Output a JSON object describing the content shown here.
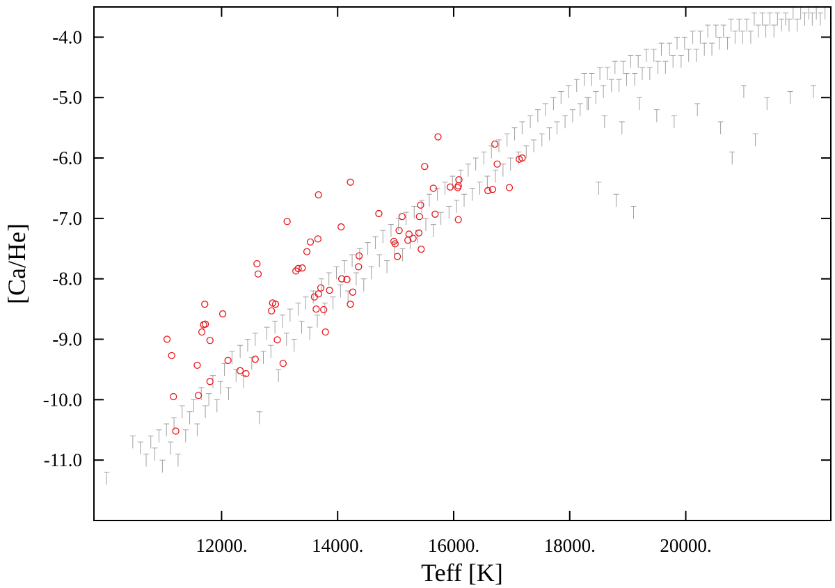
{
  "chart_data": {
    "type": "scatter",
    "title": "",
    "xlabel": "Teff [K]",
    "ylabel": "[Ca/He]",
    "xlim": [
      9800,
      22500
    ],
    "ylim": [
      -12.0,
      -3.5
    ],
    "grid": false,
    "legend": "none",
    "xticks": [
      {
        "value": 12000,
        "label": "12000."
      },
      {
        "value": 14000,
        "label": "14000."
      },
      {
        "value": 16000,
        "label": "16000."
      },
      {
        "value": 18000,
        "label": "18000."
      },
      {
        "value": 20000,
        "label": "20000."
      }
    ],
    "yticks": [
      {
        "value": -4.0,
        "label": "-4.0"
      },
      {
        "value": -5.0,
        "label": "-5.0"
      },
      {
        "value": -6.0,
        "label": "-6.0"
      },
      {
        "value": -7.0,
        "label": "-7.0"
      },
      {
        "value": -8.0,
        "label": "-8.0"
      },
      {
        "value": -9.0,
        "label": "-9.0"
      },
      {
        "value": -10.0,
        "label": "-10.0"
      },
      {
        "value": -11.0,
        "label": "-11.0"
      }
    ],
    "series": [
      {
        "marker": "upper-limit",
        "color": "#a0a0a0",
        "points": [
          [
            10020,
            -11.2
          ],
          [
            10470,
            -10.6
          ],
          [
            10600,
            -10.7
          ],
          [
            10700,
            -10.9
          ],
          [
            10780,
            -10.6
          ],
          [
            10850,
            -10.8
          ],
          [
            10920,
            -10.5
          ],
          [
            10980,
            -11.0
          ],
          [
            11050,
            -10.4
          ],
          [
            11120,
            -10.7
          ],
          [
            11180,
            -10.3
          ],
          [
            11250,
            -10.9
          ],
          [
            11320,
            -10.1
          ],
          [
            11380,
            -10.5
          ],
          [
            11450,
            -10.2
          ],
          [
            11520,
            -10.0
          ],
          [
            11580,
            -10.4
          ],
          [
            11650,
            -9.8
          ],
          [
            11720,
            -10.1
          ],
          [
            11780,
            -9.9
          ],
          [
            11850,
            -9.6
          ],
          [
            11920,
            -10.0
          ],
          [
            11980,
            -9.7
          ],
          [
            12050,
            -9.4
          ],
          [
            12120,
            -9.8
          ],
          [
            12180,
            -9.2
          ],
          [
            12250,
            -9.5
          ],
          [
            12320,
            -9.1
          ],
          [
            12380,
            -9.6
          ],
          [
            12450,
            -9.0
          ],
          [
            12520,
            -9.3
          ],
          [
            12580,
            -8.9
          ],
          [
            12650,
            -10.2
          ],
          [
            12720,
            -9.2
          ],
          [
            12780,
            -8.8
          ],
          [
            12850,
            -9.1
          ],
          [
            12920,
            -8.7
          ],
          [
            12980,
            -9.5
          ],
          [
            13050,
            -8.6
          ],
          [
            13120,
            -8.9
          ],
          [
            13180,
            -8.5
          ],
          [
            13250,
            -9.0
          ],
          [
            13320,
            -8.4
          ],
          [
            13380,
            -8.7
          ],
          [
            13450,
            -8.3
          ],
          [
            13520,
            -8.8
          ],
          [
            13580,
            -8.2
          ],
          [
            13650,
            -8.6
          ],
          [
            13720,
            -8.0
          ],
          [
            13780,
            -8.4
          ],
          [
            13850,
            -7.9
          ],
          [
            13920,
            -8.3
          ],
          [
            13980,
            -7.8
          ],
          [
            14050,
            -8.1
          ],
          [
            14120,
            -7.7
          ],
          [
            14180,
            -8.2
          ],
          [
            14250,
            -7.6
          ],
          [
            14320,
            -7.9
          ],
          [
            14380,
            -7.5
          ],
          [
            14450,
            -8.0
          ],
          [
            14520,
            -7.4
          ],
          [
            14580,
            -7.8
          ],
          [
            14650,
            -7.3
          ],
          [
            14720,
            -7.6
          ],
          [
            14780,
            -7.2
          ],
          [
            14850,
            -7.7
          ],
          [
            14920,
            -7.1
          ],
          [
            14980,
            -7.4
          ],
          [
            15050,
            -7.0
          ],
          [
            15120,
            -7.5
          ],
          [
            15180,
            -6.9
          ],
          [
            15250,
            -7.3
          ],
          [
            15320,
            -6.8
          ],
          [
            15380,
            -7.2
          ],
          [
            15450,
            -6.7
          ],
          [
            15520,
            -7.0
          ],
          [
            15580,
            -6.6
          ],
          [
            15650,
            -7.1
          ],
          [
            15720,
            -6.5
          ],
          [
            15780,
            -6.9
          ],
          [
            15850,
            -6.4
          ],
          [
            15920,
            -6.8
          ],
          [
            15980,
            -6.3
          ],
          [
            16050,
            -6.7
          ],
          [
            16120,
            -6.2
          ],
          [
            16180,
            -6.6
          ],
          [
            16250,
            -6.1
          ],
          [
            16320,
            -6.5
          ],
          [
            16380,
            -6.0
          ],
          [
            16450,
            -6.4
          ],
          [
            16520,
            -5.9
          ],
          [
            16580,
            -6.3
          ],
          [
            16650,
            -5.8
          ],
          [
            16720,
            -6.2
          ],
          [
            16780,
            -5.7
          ],
          [
            16850,
            -6.1
          ],
          [
            16920,
            -5.6
          ],
          [
            16980,
            -6.0
          ],
          [
            17050,
            -5.5
          ],
          [
            17120,
            -5.9
          ],
          [
            17180,
            -5.4
          ],
          [
            17250,
            -5.8
          ],
          [
            17320,
            -5.3
          ],
          [
            17380,
            -5.7
          ],
          [
            17450,
            -5.2
          ],
          [
            17520,
            -5.6
          ],
          [
            17580,
            -5.1
          ],
          [
            17650,
            -5.5
          ],
          [
            17720,
            -5.0
          ],
          [
            17780,
            -5.4
          ],
          [
            17850,
            -4.9
          ],
          [
            17920,
            -5.3
          ],
          [
            17980,
            -4.8
          ],
          [
            18050,
            -5.2
          ],
          [
            18120,
            -4.7
          ],
          [
            18180,
            -5.1
          ],
          [
            18250,
            -4.6
          ],
          [
            18320,
            -5.0
          ],
          [
            18380,
            -4.6
          ],
          [
            18450,
            -4.9
          ],
          [
            18520,
            -4.5
          ],
          [
            18580,
            -4.8
          ],
          [
            18650,
            -4.5
          ],
          [
            18720,
            -4.7
          ],
          [
            18780,
            -4.4
          ],
          [
            18850,
            -4.7
          ],
          [
            18920,
            -4.4
          ],
          [
            18980,
            -4.6
          ],
          [
            19050,
            -4.3
          ],
          [
            19120,
            -4.6
          ],
          [
            19180,
            -4.3
          ],
          [
            19250,
            -4.5
          ],
          [
            19320,
            -4.2
          ],
          [
            19380,
            -4.5
          ],
          [
            19450,
            -4.2
          ],
          [
            19520,
            -4.4
          ],
          [
            19580,
            -4.1
          ],
          [
            19650,
            -4.4
          ],
          [
            19720,
            -4.1
          ],
          [
            19780,
            -4.3
          ],
          [
            19850,
            -4.0
          ],
          [
            19920,
            -4.3
          ],
          [
            19980,
            -4.0
          ],
          [
            20050,
            -4.2
          ],
          [
            20120,
            -3.9
          ],
          [
            20180,
            -4.2
          ],
          [
            20250,
            -3.9
          ],
          [
            20320,
            -4.1
          ],
          [
            20380,
            -3.8
          ],
          [
            20450,
            -4.1
          ],
          [
            20520,
            -3.8
          ],
          [
            20580,
            -4.0
          ],
          [
            20650,
            -3.8
          ],
          [
            20720,
            -4.0
          ],
          [
            20780,
            -3.7
          ],
          [
            20850,
            -3.9
          ],
          [
            20920,
            -3.7
          ],
          [
            20980,
            -3.9
          ],
          [
            21050,
            -3.7
          ],
          [
            21120,
            -3.9
          ],
          [
            21180,
            -3.6
          ],
          [
            21250,
            -3.8
          ],
          [
            21320,
            -3.6
          ],
          [
            21380,
            -3.8
          ],
          [
            21450,
            -3.6
          ],
          [
            21520,
            -3.8
          ],
          [
            21580,
            -3.6
          ],
          [
            21650,
            -3.7
          ],
          [
            21720,
            -3.6
          ],
          [
            21780,
            -3.7
          ],
          [
            21850,
            -3.5
          ],
          [
            21920,
            -3.7
          ],
          [
            21980,
            -3.5
          ],
          [
            22050,
            -3.6
          ],
          [
            22120,
            -3.5
          ],
          [
            22180,
            -3.6
          ],
          [
            22250,
            -3.5
          ],
          [
            22320,
            -3.6
          ],
          [
            22400,
            -3.5
          ],
          [
            18300,
            -5.0
          ],
          [
            18600,
            -5.3
          ],
          [
            18900,
            -5.4
          ],
          [
            19200,
            -5.0
          ],
          [
            19500,
            -5.2
          ],
          [
            19800,
            -5.3
          ],
          [
            20200,
            -5.1
          ],
          [
            20600,
            -5.4
          ],
          [
            21000,
            -4.8
          ],
          [
            21400,
            -5.0
          ],
          [
            21800,
            -4.9
          ],
          [
            22200,
            -4.8
          ],
          [
            18500,
            -6.4
          ],
          [
            18800,
            -6.6
          ],
          [
            19100,
            -6.8
          ],
          [
            20800,
            -5.9
          ],
          [
            21200,
            -5.6
          ]
        ]
      },
      {
        "marker": "circle",
        "color": "#e8161b",
        "points": [
          [
            11060,
            -9.0
          ],
          [
            11140,
            -9.27
          ],
          [
            11170,
            -9.95
          ],
          [
            11210,
            -10.52
          ],
          [
            11580,
            -9.43
          ],
          [
            11600,
            -9.93
          ],
          [
            11660,
            -8.88
          ],
          [
            11690,
            -8.76
          ],
          [
            11710,
            -8.42
          ],
          [
            11720,
            -8.75
          ],
          [
            11800,
            -9.02
          ],
          [
            11800,
            -9.7
          ],
          [
            12020,
            -8.58
          ],
          [
            12110,
            -9.35
          ],
          [
            12320,
            -9.52
          ],
          [
            12420,
            -9.57
          ],
          [
            12580,
            -9.33
          ],
          [
            12610,
            -7.75
          ],
          [
            12630,
            -7.92
          ],
          [
            12860,
            -8.53
          ],
          [
            12880,
            -8.4
          ],
          [
            12930,
            -8.42
          ],
          [
            12960,
            -9.01
          ],
          [
            13060,
            -9.4
          ],
          [
            13130,
            -7.05
          ],
          [
            13280,
            -7.87
          ],
          [
            13320,
            -7.83
          ],
          [
            13390,
            -7.82
          ],
          [
            13470,
            -7.55
          ],
          [
            13530,
            -7.39
          ],
          [
            13600,
            -8.3
          ],
          [
            13630,
            -8.5
          ],
          [
            13660,
            -7.34
          ],
          [
            13670,
            -6.61
          ],
          [
            13670,
            -8.25
          ],
          [
            13710,
            -8.15
          ],
          [
            13760,
            -8.51
          ],
          [
            13790,
            -8.88
          ],
          [
            13860,
            -8.19
          ],
          [
            14060,
            -7.14
          ],
          [
            14070,
            -8.0
          ],
          [
            14160,
            -8.01
          ],
          [
            14220,
            -8.42
          ],
          [
            14220,
            -6.4
          ],
          [
            14260,
            -8.22
          ],
          [
            14360,
            -7.8
          ],
          [
            14370,
            -7.62
          ],
          [
            14710,
            -6.92
          ],
          [
            14970,
            -7.38
          ],
          [
            14990,
            -7.42
          ],
          [
            15030,
            -7.63
          ],
          [
            15060,
            -7.2
          ],
          [
            15110,
            -6.97
          ],
          [
            15210,
            -7.36
          ],
          [
            15230,
            -7.26
          ],
          [
            15300,
            -7.33
          ],
          [
            15400,
            -7.24
          ],
          [
            15410,
            -6.97
          ],
          [
            15430,
            -6.78
          ],
          [
            15440,
            -7.51
          ],
          [
            15500,
            -6.14
          ],
          [
            15650,
            -6.5
          ],
          [
            15680,
            -6.93
          ],
          [
            15730,
            -5.65
          ],
          [
            15940,
            -6.48
          ],
          [
            16070,
            -6.49
          ],
          [
            16080,
            -6.46
          ],
          [
            16080,
            -7.02
          ],
          [
            16090,
            -6.36
          ],
          [
            16590,
            -6.54
          ],
          [
            16670,
            -6.52
          ],
          [
            16710,
            -5.77
          ],
          [
            16750,
            -6.1
          ],
          [
            16960,
            -6.49
          ],
          [
            17130,
            -6.02
          ],
          [
            17180,
            -6.0
          ]
        ]
      }
    ]
  }
}
